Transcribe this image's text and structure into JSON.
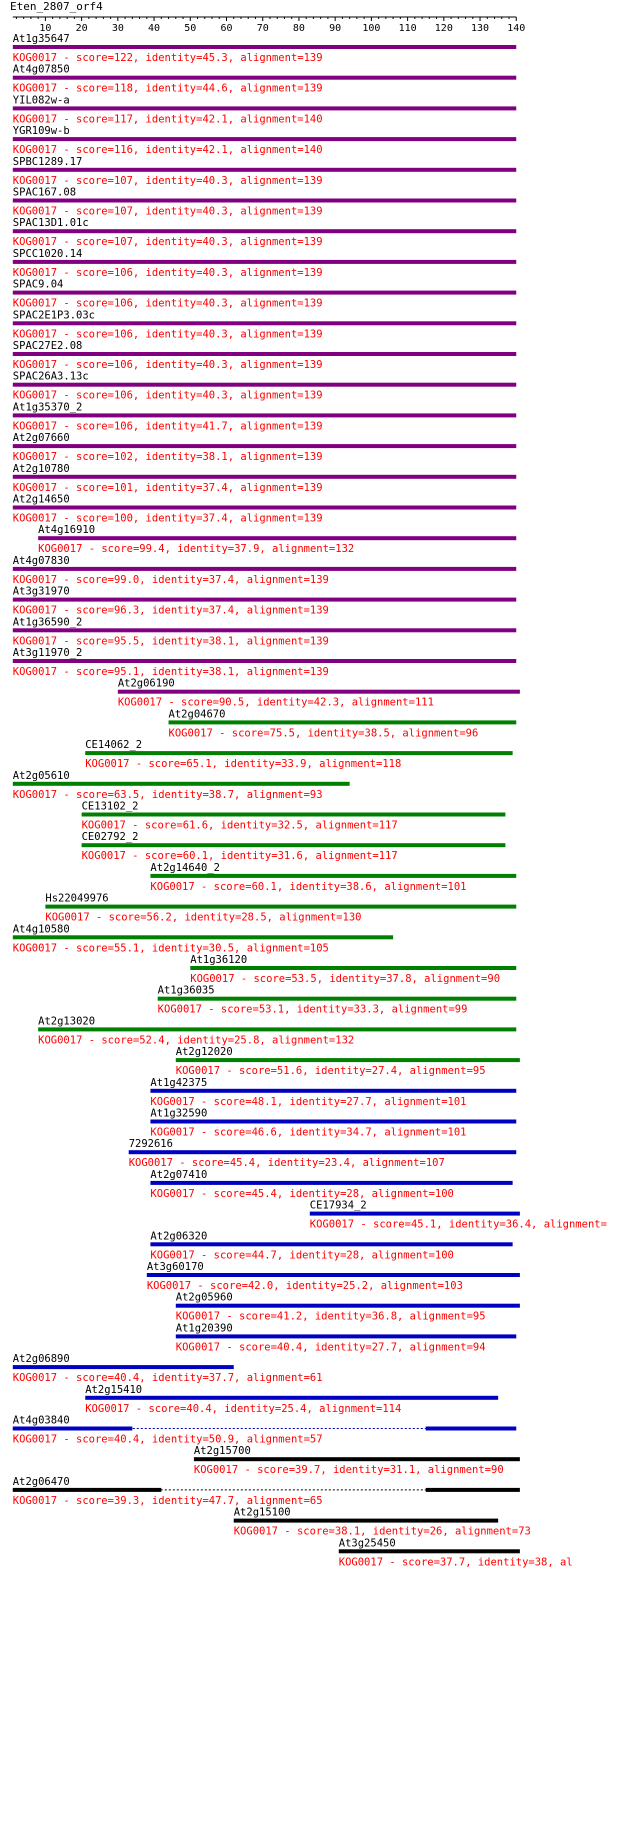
{
  "query": {
    "name": "Eten_2807_orf4",
    "length": 140
  },
  "axis": {
    "ticks": [
      10,
      20,
      30,
      40,
      50,
      60,
      70,
      80,
      90,
      100,
      110,
      120,
      130,
      140
    ]
  },
  "colors": {
    "purple": "#800080",
    "green": "#008000",
    "blue": "#0000c0",
    "black": "#000000",
    "score_text": "#ff0000",
    "axis": "#000000"
  },
  "chart_data": {
    "type": "alignment-track",
    "x_unit": "query residue position",
    "xlim": [
      1,
      140
    ],
    "hits": [
      {
        "name": "At1g35647",
        "score_text": "KOG0017 - score=122, identity=45.3, alignment=139",
        "start": 1,
        "end": 140,
        "color": "purple"
      },
      {
        "name": "At4g07850",
        "score_text": "KOG0017 - score=118, identity=44.6, alignment=139",
        "start": 1,
        "end": 140,
        "color": "purple"
      },
      {
        "name": "YIL082w-a",
        "score_text": "KOG0017 - score=117, identity=42.1, alignment=140",
        "start": 1,
        "end": 140,
        "color": "purple"
      },
      {
        "name": "YGR109w-b",
        "score_text": "KOG0017 - score=116, identity=42.1, alignment=140",
        "start": 1,
        "end": 140,
        "color": "purple"
      },
      {
        "name": "SPBC1289.17",
        "score_text": "KOG0017 - score=107, identity=40.3, alignment=139",
        "start": 1,
        "end": 140,
        "color": "purple"
      },
      {
        "name": "SPAC167.08",
        "score_text": "KOG0017 - score=107, identity=40.3, alignment=139",
        "start": 1,
        "end": 140,
        "color": "purple"
      },
      {
        "name": "SPAC13D1.01c",
        "score_text": "KOG0017 - score=107, identity=40.3, alignment=139",
        "start": 1,
        "end": 140,
        "color": "purple"
      },
      {
        "name": "SPCC1020.14",
        "score_text": "KOG0017 - score=106, identity=40.3, alignment=139",
        "start": 1,
        "end": 140,
        "color": "purple"
      },
      {
        "name": "SPAC9.04",
        "score_text": "KOG0017 - score=106, identity=40.3, alignment=139",
        "start": 1,
        "end": 140,
        "color": "purple"
      },
      {
        "name": "SPAC2E1P3.03c",
        "score_text": "KOG0017 - score=106, identity=40.3, alignment=139",
        "start": 1,
        "end": 140,
        "color": "purple"
      },
      {
        "name": "SPAC27E2.08",
        "score_text": "KOG0017 - score=106, identity=40.3, alignment=139",
        "start": 1,
        "end": 140,
        "color": "purple"
      },
      {
        "name": "SPAC26A3.13c",
        "score_text": "KOG0017 - score=106, identity=40.3, alignment=139",
        "start": 1,
        "end": 140,
        "color": "purple"
      },
      {
        "name": "At1g35370_2",
        "score_text": "KOG0017 - score=106, identity=41.7, alignment=139",
        "start": 1,
        "end": 140,
        "color": "purple"
      },
      {
        "name": "At2g07660",
        "score_text": "KOG0017 - score=102, identity=38.1, alignment=139",
        "start": 1,
        "end": 140,
        "color": "purple"
      },
      {
        "name": "At2g10780",
        "score_text": "KOG0017 - score=101, identity=37.4, alignment=139",
        "start": 1,
        "end": 140,
        "color": "purple"
      },
      {
        "name": "At2g14650",
        "score_text": "KOG0017 - score=100, identity=37.4, alignment=139",
        "start": 1,
        "end": 140,
        "color": "purple"
      },
      {
        "name": "At4g16910",
        "score_text": "KOG0017 - score=99.4, identity=37.9, alignment=132",
        "start": 8,
        "end": 140,
        "color": "purple"
      },
      {
        "name": "At4g07830",
        "score_text": "KOG0017 - score=99.0, identity=37.4, alignment=139",
        "start": 1,
        "end": 140,
        "color": "purple"
      },
      {
        "name": "At3g31970",
        "score_text": "KOG0017 - score=96.3, identity=37.4, alignment=139",
        "start": 1,
        "end": 140,
        "color": "purple"
      },
      {
        "name": "At1g36590_2",
        "score_text": "KOG0017 - score=95.5, identity=38.1, alignment=139",
        "start": 1,
        "end": 140,
        "color": "purple"
      },
      {
        "name": "At3g11970_2",
        "score_text": "KOG0017 - score=95.1, identity=38.1, alignment=139",
        "start": 1,
        "end": 140,
        "color": "purple"
      },
      {
        "name": "At2g06190",
        "score_text": "KOG0017 - score=90.5, identity=42.3, alignment=111",
        "start": 30,
        "end": 141,
        "color": "purple"
      },
      {
        "name": "At2g04670",
        "score_text": "KOG0017 - score=75.5, identity=38.5, alignment=96",
        "start": 44,
        "end": 140,
        "color": "green"
      },
      {
        "name": "CE14062_2",
        "score_text": "KOG0017 - score=65.1, identity=33.9, alignment=118",
        "start": 21,
        "end": 139,
        "color": "green"
      },
      {
        "name": "At2g05610",
        "score_text": "KOG0017 - score=63.5, identity=38.7, alignment=93",
        "start": 1,
        "end": 94,
        "color": "green"
      },
      {
        "name": "CE13102_2",
        "score_text": "KOG0017 - score=61.6, identity=32.5, alignment=117",
        "start": 20,
        "end": 137,
        "color": "green"
      },
      {
        "name": "CE02792_2",
        "score_text": "KOG0017 - score=60.1, identity=31.6, alignment=117",
        "start": 20,
        "end": 137,
        "color": "green"
      },
      {
        "name": "At2g14640_2",
        "score_text": "KOG0017 - score=60.1, identity=38.6, alignment=101",
        "start": 39,
        "end": 140,
        "color": "green"
      },
      {
        "name": "Hs22049976",
        "score_text": "KOG0017 - score=56.2, identity=28.5, alignment=130",
        "start": 10,
        "end": 140,
        "color": "green"
      },
      {
        "name": "At4g10580",
        "score_text": "KOG0017 - score=55.1, identity=30.5, alignment=105",
        "start": 1,
        "end": 106,
        "color": "green"
      },
      {
        "name": "At1g36120",
        "score_text": "KOG0017 - score=53.5, identity=37.8, alignment=90",
        "start": 50,
        "end": 140,
        "color": "green"
      },
      {
        "name": "At1g36035",
        "score_text": "KOG0017 - score=53.1, identity=33.3, alignment=99",
        "start": 41,
        "end": 140,
        "color": "green"
      },
      {
        "name": "At2g13020",
        "score_text": "KOG0017 - score=52.4, identity=25.8, alignment=132",
        "start": 8,
        "end": 140,
        "color": "green"
      },
      {
        "name": "At2g12020",
        "score_text": "KOG0017 - score=51.6, identity=27.4, alignment=95",
        "start": 46,
        "end": 141,
        "color": "green"
      },
      {
        "name": "At1g42375",
        "score_text": "KOG0017 - score=48.1, identity=27.7, alignment=101",
        "start": 39,
        "end": 140,
        "color": "blue"
      },
      {
        "name": "At1g32590",
        "score_text": "KOG0017 - score=46.6, identity=34.7, alignment=101",
        "start": 39,
        "end": 140,
        "color": "blue"
      },
      {
        "name": "7292616",
        "score_text": "KOG0017 - score=45.4, identity=23.4, alignment=107",
        "start": 33,
        "end": 140,
        "color": "blue"
      },
      {
        "name": "At2g07410",
        "score_text": "KOG0017 - score=45.4, identity=28, alignment=100",
        "start": 39,
        "end": 139,
        "color": "blue"
      },
      {
        "name": "CE17934_2",
        "score_text": "KOG0017 - score=45.1, identity=36.4, alignment=",
        "start": 83,
        "end": 141,
        "color": "blue"
      },
      {
        "name": "At2g06320",
        "score_text": "KOG0017 - score=44.7, identity=28, alignment=100",
        "start": 39,
        "end": 139,
        "color": "blue"
      },
      {
        "name": "At3g60170",
        "score_text": "KOG0017 - score=42.0, identity=25.2, alignment=103",
        "start": 38,
        "end": 141,
        "color": "blue"
      },
      {
        "name": "At2g05960",
        "score_text": "KOG0017 - score=41.2, identity=36.8, alignment=95",
        "start": 46,
        "end": 141,
        "color": "blue"
      },
      {
        "name": "At1g20390",
        "score_text": "KOG0017 - score=40.4, identity=27.7, alignment=94",
        "start": 46,
        "end": 140,
        "color": "blue"
      },
      {
        "name": "At2g06890",
        "score_text": "KOG0017 - score=40.4, identity=37.7, alignment=61",
        "start": 1,
        "end": 62,
        "color": "blue"
      },
      {
        "name": "At2g15410",
        "score_text": "KOG0017 - score=40.4, identity=25.4, alignment=114",
        "start": 21,
        "end": 135,
        "color": "blue"
      },
      {
        "name": "At4g03840",
        "score_text": "KOG0017 - score=40.4, identity=50.9, alignment=57",
        "start": 1,
        "end": 140,
        "color": "blue",
        "segments": [
          [
            1,
            34
          ],
          [
            115,
            140
          ]
        ]
      },
      {
        "name": "At2g15700",
        "score_text": "KOG0017 - score=39.7, identity=31.1, alignment=90",
        "start": 51,
        "end": 141,
        "color": "black"
      },
      {
        "name": "At2g06470",
        "score_text": "KOG0017 - score=39.3, identity=47.7, alignment=65",
        "start": 1,
        "end": 141,
        "color": "black",
        "segments": [
          [
            1,
            42
          ],
          [
            115,
            141
          ]
        ]
      },
      {
        "name": "At2g15100",
        "score_text": "KOG0017 - score=38.1, identity=26, alignment=73",
        "start": 62,
        "end": 135,
        "color": "black"
      },
      {
        "name": "At3g25450",
        "score_text": "KOG0017 - score=37.7, identity=38, al",
        "start": 91,
        "end": 141,
        "color": "black"
      }
    ]
  }
}
